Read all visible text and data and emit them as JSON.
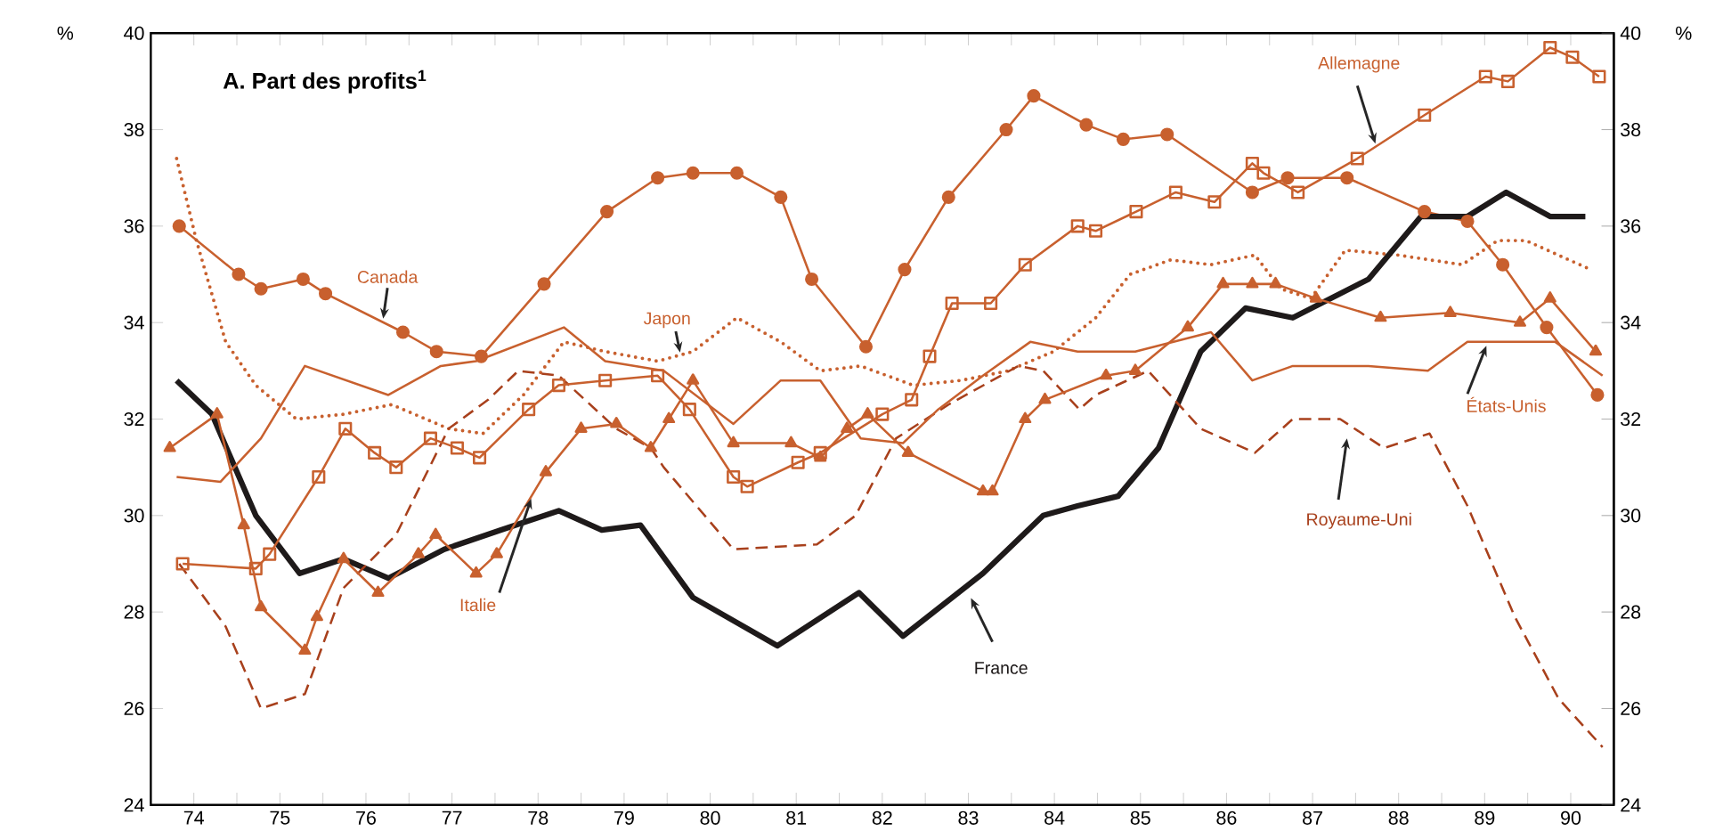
{
  "chart_data": {
    "type": "line",
    "title": "A.  Part des profits$^{1}$",
    "ylabel": "%",
    "y2label": "%",
    "xlim": [
      74,
      91
    ],
    "ylim": [
      24,
      40
    ],
    "y2lim": [
      24,
      40
    ],
    "yticks": [
      24,
      26,
      28,
      30,
      32,
      34,
      36,
      38,
      40
    ],
    "y2ticks": [
      24,
      26,
      28,
      30,
      32,
      34,
      36,
      38,
      40
    ],
    "xticks": [
      {
        "value": 74.5,
        "label": "74"
      },
      {
        "value": 75,
        "label": null
      },
      {
        "value": 75.5,
        "label": "75"
      },
      {
        "value": 76,
        "label": null
      },
      {
        "value": 76.5,
        "label": "76"
      },
      {
        "value": 77,
        "label": null
      },
      {
        "value": 77.5,
        "label": "77"
      },
      {
        "value": 78,
        "label": null
      },
      {
        "value": 78.5,
        "label": "78"
      },
      {
        "value": 79,
        "label": null
      },
      {
        "value": 79.5,
        "label": "79"
      },
      {
        "value": 80,
        "label": null
      },
      {
        "value": 80.5,
        "label": "80"
      },
      {
        "value": 81,
        "label": null
      },
      {
        "value": 81.5,
        "label": "81"
      },
      {
        "value": 82,
        "label": null
      },
      {
        "value": 82.5,
        "label": "82"
      },
      {
        "value": 83,
        "label": null
      },
      {
        "value": 83.5,
        "label": "83"
      },
      {
        "value": 84,
        "label": null
      },
      {
        "value": 84.5,
        "label": "84"
      },
      {
        "value": 85,
        "label": null
      },
      {
        "value": 85.5,
        "label": "85"
      },
      {
        "value": 86,
        "label": null
      },
      {
        "value": 86.5,
        "label": "86"
      },
      {
        "value": 87,
        "label": null
      },
      {
        "value": 87.5,
        "label": "87"
      },
      {
        "value": 88,
        "label": null
      },
      {
        "value": 88.5,
        "label": "88"
      },
      {
        "value": 89,
        "label": null
      },
      {
        "value": 89.5,
        "label": "89"
      },
      {
        "value": 90,
        "label": null
      },
      {
        "value": 90.5,
        "label": "90"
      }
    ],
    "series": [
      {
        "name": "Canada",
        "color": "#c8602e",
        "marker": "circle",
        "line_style": "solid",
        "x": [
          74.33,
          75.02,
          75.28,
          75.77,
          76.03,
          76.93,
          77.32,
          77.84,
          78.57,
          79.3,
          79.89,
          80.3,
          80.81,
          81.32,
          81.68,
          82.31,
          82.76,
          83.27,
          83.94,
          84.26,
          84.87,
          85.3,
          85.81,
          86.8,
          87.21,
          87.9,
          88.8,
          89.3,
          89.71,
          90.22,
          90.81
        ],
        "values": [
          36.0,
          35.0,
          34.7,
          34.9,
          34.6,
          33.8,
          33.4,
          33.3,
          34.8,
          36.3,
          37.0,
          37.1,
          37.1,
          36.6,
          34.9,
          33.5,
          35.1,
          36.6,
          38.0,
          38.7,
          38.1,
          37.8,
          37.9,
          36.7,
          37.0,
          37.0,
          36.3,
          36.1,
          35.2,
          33.9,
          32.5
        ]
      },
      {
        "name": "Japon",
        "color": "#c8602e",
        "marker": "none",
        "line_style": "dotted",
        "x": [
          74.3,
          74.53,
          74.87,
          75.22,
          75.69,
          76.24,
          76.8,
          77.46,
          77.86,
          78.33,
          78.8,
          79.28,
          79.89,
          80.3,
          80.81,
          81.32,
          81.78,
          82.25,
          82.86,
          83.41,
          83.96,
          84.49,
          84.98,
          85.38,
          85.85,
          86.32,
          86.83,
          87.13,
          87.48,
          87.88,
          88.49,
          89.24,
          89.65,
          89.98,
          90.73
        ],
        "values": [
          37.4,
          35.7,
          33.6,
          32.7,
          32.0,
          32.1,
          32.3,
          31.8,
          31.7,
          32.5,
          33.6,
          33.4,
          33.2,
          33.4,
          34.1,
          33.6,
          33.0,
          33.1,
          32.7,
          32.8,
          33.0,
          33.4,
          34.1,
          35.0,
          35.3,
          35.2,
          35.4,
          34.7,
          34.5,
          35.5,
          35.4,
          35.2,
          35.7,
          35.7,
          35.1
        ]
      },
      {
        "name": "France",
        "color": "#1e1a1a",
        "marker": "none",
        "line_style": "solid",
        "x": [
          74.3,
          74.71,
          75.22,
          75.73,
          76.24,
          76.76,
          77.41,
          78.07,
          78.74,
          79.24,
          79.69,
          80.3,
          81.28,
          82.23,
          82.74,
          83.67,
          84.37,
          84.77,
          85.24,
          85.71,
          86.2,
          86.72,
          87.27,
          88.15,
          88.76,
          89.3,
          89.75,
          90.26,
          90.67
        ],
        "values": [
          32.8,
          32.1,
          30.0,
          28.8,
          29.1,
          28.7,
          29.3,
          29.7,
          30.1,
          29.7,
          29.8,
          28.3,
          27.3,
          28.4,
          27.5,
          28.8,
          30.0,
          30.2,
          30.4,
          31.4,
          33.4,
          34.3,
          34.1,
          34.9,
          36.2,
          36.2,
          36.7,
          36.2,
          36.2
        ]
      },
      {
        "name": "Royaume-Uni",
        "color": "#a8401c",
        "marker": "none",
        "line_style": "dashed",
        "x": [
          74.33,
          74.87,
          75.28,
          75.79,
          76.24,
          76.85,
          77.46,
          77.92,
          78.27,
          78.74,
          79.41,
          79.81,
          79.96,
          80.77,
          81.74,
          82.19,
          82.66,
          83.27,
          84.08,
          84.37,
          84.79,
          84.98,
          85.59,
          86.2,
          86.83,
          87.27,
          87.82,
          88.33,
          88.86,
          89.3,
          89.85,
          90.36,
          90.87
        ],
        "values": [
          29.0,
          27.7,
          26.0,
          26.3,
          28.5,
          29.6,
          31.8,
          32.4,
          33.0,
          32.9,
          31.8,
          31.4,
          31.0,
          29.3,
          29.4,
          30.0,
          31.6,
          32.3,
          33.1,
          33.0,
          32.2,
          32.5,
          33.0,
          31.8,
          31.3,
          32.0,
          32.0,
          31.4,
          31.7,
          30.2,
          27.9,
          26.2,
          25.2
        ]
      },
      {
        "name": "Allemagne",
        "color": "#c8602e",
        "marker": "square",
        "line_style": "solid",
        "x": [
          74.37,
          75.22,
          75.38,
          75.95,
          76.26,
          76.6,
          76.85,
          77.25,
          77.56,
          77.82,
          78.39,
          78.74,
          79.28,
          79.89,
          80.26,
          80.77,
          80.93,
          81.52,
          81.78,
          82.5,
          82.84,
          83.05,
          83.31,
          83.76,
          84.16,
          84.77,
          84.98,
          85.45,
          85.91,
          86.36,
          86.8,
          86.93,
          87.33,
          88.02,
          88.8,
          89.51,
          89.77,
          90.26,
          90.52,
          90.83
        ],
        "values": [
          29.0,
          28.9,
          29.2,
          30.8,
          31.8,
          31.3,
          31.0,
          31.6,
          31.4,
          31.2,
          32.2,
          32.7,
          32.8,
          32.9,
          32.2,
          30.8,
          30.6,
          31.1,
          31.3,
          32.1,
          32.4,
          33.3,
          34.4,
          34.4,
          35.2,
          36.0,
          35.9,
          36.3,
          36.7,
          36.5,
          37.3,
          37.1,
          36.7,
          37.4,
          38.3,
          39.1,
          39.0,
          39.7,
          39.5,
          39.1
        ]
      },
      {
        "name": "Italie",
        "color": "#c8602e",
        "marker": "triangle",
        "line_style": "solid",
        "x": [
          74.22,
          74.77,
          75.08,
          75.28,
          75.79,
          75.93,
          76.24,
          76.64,
          77.11,
          77.31,
          77.78,
          78.02,
          78.59,
          79.0,
          79.41,
          79.81,
          80.02,
          80.3,
          80.77,
          81.44,
          81.78,
          82.09,
          82.33,
          82.8,
          83.67,
          83.78,
          84.16,
          84.39,
          85.1,
          85.44,
          86.05,
          86.46,
          86.8,
          87.07,
          87.54,
          88.29,
          89.1,
          89.91,
          90.26,
          90.79
        ],
        "values": [
          31.4,
          32.1,
          29.8,
          28.1,
          27.2,
          27.9,
          29.1,
          28.4,
          29.2,
          29.6,
          28.8,
          29.2,
          30.9,
          31.8,
          31.9,
          31.4,
          32.0,
          32.8,
          31.5,
          31.5,
          31.2,
          31.8,
          32.1,
          31.3,
          30.5,
          30.5,
          32.0,
          32.4,
          32.9,
          33.0,
          33.9,
          34.8,
          34.8,
          34.8,
          34.5,
          34.1,
          34.2,
          34.0,
          34.5,
          33.4
        ]
      },
      {
        "name": "États-Unis",
        "color": "#c8602e",
        "marker": "none",
        "line_style": "solid",
        "x": [
          74.3,
          74.81,
          75.28,
          75.79,
          76.76,
          77.37,
          77.78,
          78.8,
          79.28,
          79.96,
          80.77,
          81.32,
          81.78,
          82.25,
          82.74,
          83.15,
          83.67,
          84.22,
          84.77,
          85.44,
          86.32,
          86.8,
          87.27,
          88.15,
          88.84,
          89.3,
          90.32,
          90.87
        ],
        "values": [
          30.8,
          30.7,
          31.6,
          33.1,
          32.5,
          33.1,
          33.2,
          33.9,
          33.2,
          33.0,
          31.9,
          32.8,
          32.8,
          31.6,
          31.5,
          32.2,
          32.9,
          33.6,
          33.4,
          33.4,
          33.8,
          32.8,
          33.1,
          33.1,
          33.0,
          33.6,
          33.6,
          32.9
        ]
      }
    ]
  }
}
